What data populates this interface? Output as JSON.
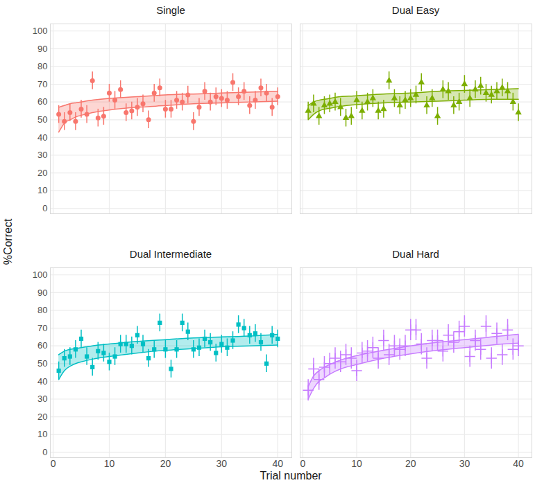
{
  "chart_data": {
    "type": "scatter",
    "x_label": "Trial number",
    "y_label": "%Correct",
    "xlim": [
      -0.5,
      42.5
    ],
    "xticks": [
      0,
      10,
      20,
      30,
      40
    ],
    "ylim": [
      -3,
      104
    ],
    "yticks": [
      0,
      10,
      20,
      30,
      40,
      50,
      60,
      70,
      80,
      90,
      100
    ],
    "grid": true,
    "panels": [
      {
        "title": "Single",
        "color": "#F8766D",
        "marker": "circle",
        "tick_labels": "y",
        "x": [
          1,
          2,
          3,
          4,
          5,
          6,
          7,
          8,
          9,
          10,
          11,
          12,
          13,
          14,
          15,
          16,
          17,
          18,
          19,
          20,
          21,
          22,
          23,
          24,
          25,
          26,
          27,
          28,
          29,
          30,
          31,
          32,
          33,
          34,
          35,
          36,
          37,
          38,
          39,
          40
        ],
        "values": [
          53,
          49,
          54,
          49,
          56,
          53,
          72,
          51,
          52,
          65,
          61,
          67,
          54,
          55,
          57,
          59,
          50,
          65,
          68,
          56,
          56,
          61,
          60,
          64,
          49,
          57,
          66,
          60,
          63,
          62,
          61,
          71,
          63,
          66,
          58,
          61,
          68,
          65,
          57,
          63
        ],
        "error": [
          5,
          5,
          5,
          5,
          5,
          5,
          5,
          5,
          5,
          5,
          5,
          5,
          5,
          5,
          5,
          5,
          5,
          5,
          5,
          5,
          5,
          5,
          5,
          5,
          5,
          5,
          5,
          5,
          5,
          5,
          5,
          5,
          5,
          5,
          5,
          5,
          5,
          5,
          5,
          5
        ],
        "fit": {
          "x": [
            1,
            2,
            3,
            4,
            5,
            7,
            10,
            15,
            20,
            25,
            30,
            35,
            40
          ],
          "lower": [
            43,
            48,
            50,
            51.5,
            52.5,
            54,
            55.5,
            57,
            58,
            59,
            59.5,
            60,
            60.5
          ],
          "upper": [
            57,
            58,
            59,
            59.5,
            60,
            61,
            62,
            63,
            64,
            64.5,
            65,
            65.5,
            66
          ]
        }
      },
      {
        "title": "Dual Easy",
        "color": "#7CAE00",
        "marker": "triangle",
        "tick_labels": false,
        "x": [
          1,
          2,
          3,
          4,
          5,
          6,
          7,
          8,
          9,
          10,
          11,
          12,
          13,
          14,
          15,
          16,
          17,
          18,
          19,
          20,
          21,
          22,
          23,
          24,
          25,
          26,
          27,
          28,
          29,
          30,
          31,
          32,
          33,
          34,
          35,
          36,
          37,
          38,
          39,
          40
        ],
        "values": [
          55,
          59,
          52,
          58,
          59,
          60,
          57,
          51,
          52,
          61,
          55,
          60,
          62,
          55,
          56,
          72,
          62,
          58,
          61,
          62,
          64,
          71,
          58,
          62,
          52,
          67,
          66,
          58,
          60,
          70,
          62,
          67,
          69,
          65,
          64,
          66,
          68,
          66,
          60,
          54
        ],
        "error": [
          5,
          5,
          5,
          5,
          5,
          5,
          5,
          5,
          5,
          5,
          5,
          5,
          5,
          5,
          5,
          5,
          5,
          5,
          5,
          5,
          5,
          5,
          5,
          5,
          5,
          5,
          5,
          5,
          5,
          5,
          5,
          5,
          5,
          5,
          5,
          5,
          5,
          5,
          5,
          5
        ],
        "fit": {
          "x": [
            1,
            2,
            3,
            4,
            5,
            7,
            10,
            15,
            20,
            25,
            30,
            35,
            40
          ],
          "lower": [
            50,
            53,
            55,
            56,
            56.5,
            57.5,
            58.5,
            59.5,
            60,
            60.5,
            61,
            61.5,
            61.5
          ],
          "upper": [
            58,
            60,
            61,
            61.5,
            62,
            63,
            63.5,
            64.5,
            65,
            66,
            66.5,
            67,
            67.5
          ]
        }
      },
      {
        "title": "Dual Intermediate",
        "color": "#00BFC4",
        "marker": "square",
        "tick_labels": true,
        "x": [
          1,
          2,
          3,
          4,
          5,
          6,
          7,
          8,
          9,
          10,
          11,
          12,
          13,
          14,
          15,
          16,
          17,
          18,
          19,
          20,
          21,
          22,
          23,
          24,
          25,
          26,
          27,
          28,
          29,
          30,
          31,
          32,
          33,
          34,
          35,
          36,
          37,
          38,
          39,
          40
        ],
        "values": [
          46,
          53,
          54,
          58,
          64,
          54,
          48,
          57,
          56,
          51,
          54,
          61,
          61,
          60,
          66,
          61,
          53,
          58,
          73,
          58,
          47,
          58,
          73,
          68,
          58,
          59,
          64,
          62,
          56,
          61,
          59,
          63,
          72,
          70,
          66,
          67,
          62,
          50,
          66,
          64
        ],
        "error": [
          5,
          5,
          5,
          5,
          5,
          5,
          5,
          5,
          5,
          5,
          5,
          5,
          5,
          5,
          5,
          5,
          5,
          5,
          5,
          5,
          5,
          5,
          5,
          5,
          5,
          5,
          5,
          5,
          5,
          5,
          5,
          5,
          5,
          5,
          5,
          5,
          5,
          5,
          5,
          5
        ],
        "fit": {
          "x": [
            1,
            2,
            3,
            4,
            5,
            7,
            10,
            15,
            20,
            25,
            30,
            35,
            40
          ],
          "lower": [
            41,
            46,
            48.5,
            50,
            51,
            52.5,
            54,
            56,
            57.5,
            58.5,
            59.5,
            60,
            60.5
          ],
          "upper": [
            55,
            57,
            58,
            58.5,
            59,
            60,
            61,
            62.5,
            63.5,
            64.5,
            65,
            65.5,
            66.5
          ]
        }
      },
      {
        "title": "Dual Hard",
        "color": "#C77CFF",
        "marker": "plus",
        "tick_labels": "x",
        "x": [
          1,
          2,
          3,
          4,
          5,
          6,
          7,
          8,
          9,
          10,
          11,
          12,
          13,
          14,
          15,
          16,
          17,
          18,
          19,
          20,
          21,
          22,
          23,
          24,
          25,
          26,
          27,
          28,
          29,
          30,
          31,
          32,
          33,
          34,
          35,
          36,
          37,
          38,
          39,
          40
        ],
        "values": [
          35,
          47,
          41,
          48,
          50,
          53,
          51,
          55,
          53,
          46,
          56,
          57,
          59,
          53,
          63,
          55,
          60,
          58,
          60,
          69,
          69,
          61,
          53,
          63,
          63,
          57,
          66,
          62,
          68,
          71,
          54,
          63,
          58,
          71,
          53,
          67,
          55,
          69,
          58,
          60
        ],
        "error": [
          6,
          6,
          6,
          6,
          6,
          6,
          6,
          6,
          6,
          6,
          6,
          6,
          6,
          6,
          6,
          6,
          6,
          6,
          6,
          6,
          6,
          6,
          6,
          6,
          6,
          6,
          6,
          6,
          6,
          6,
          6,
          6,
          6,
          6,
          6,
          6,
          6,
          6,
          6,
          6
        ],
        "fit": {
          "x": [
            1,
            2,
            3,
            4,
            5,
            7,
            10,
            15,
            20,
            25,
            30,
            35,
            40
          ],
          "lower": [
            30,
            36,
            40,
            42,
            44,
            47,
            49.5,
            53,
            55.5,
            57.5,
            59,
            60.5,
            61.5
          ],
          "upper": [
            37,
            43,
            46,
            48,
            49.5,
            52,
            54.5,
            57.5,
            60,
            62,
            63.5,
            65,
            66.5
          ]
        }
      }
    ]
  }
}
